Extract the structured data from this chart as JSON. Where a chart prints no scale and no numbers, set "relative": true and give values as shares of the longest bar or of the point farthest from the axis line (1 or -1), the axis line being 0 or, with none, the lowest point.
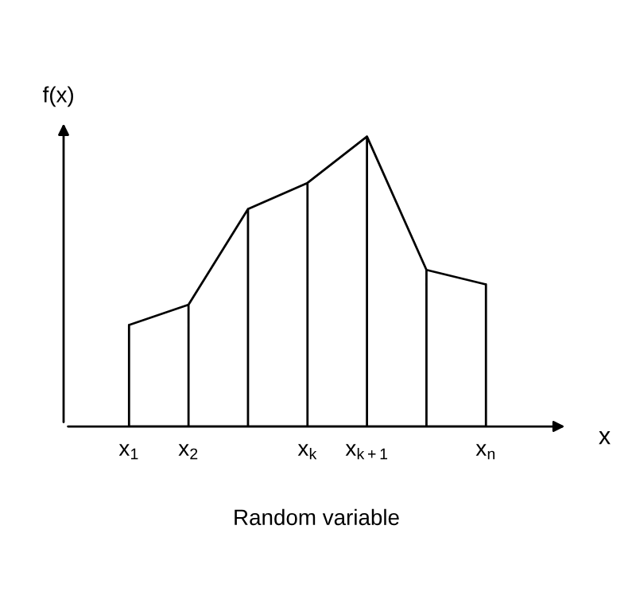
{
  "chart_data": {
    "type": "area",
    "relative": true,
    "color": "#000000",
    "categories": [
      "x$_{1}$",
      "x$_{2}$",
      null,
      "x$_{k}$",
      "x$_{k+1}$",
      null,
      "x$_{n}$"
    ],
    "values": [
      0.35,
      0.42,
      0.75,
      0.84,
      1,
      0.54,
      0.49
    ],
    "ylabel": "f(x)",
    "xlabel": "Random variable",
    "annotations": [
      "x"
    ],
    "legend": false
  }
}
